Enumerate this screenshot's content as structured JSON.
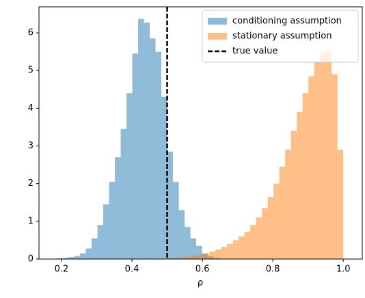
{
  "chart_data": {
    "type": "histogram",
    "xlabel": "ρ",
    "xlim": [
      0.136,
      1.054
    ],
    "ylim": [
      0,
      6.69
    ],
    "xticks": [
      0.2,
      0.4,
      0.6,
      0.8,
      {
        "value": 1.0,
        "label": "1.0"
      }
    ],
    "yticks": [
      0,
      1,
      2,
      3,
      4,
      5,
      6
    ],
    "legend": "upper right",
    "series": [
      {
        "name": "conditioning assumption",
        "color": "#1f77b4",
        "alpha": 0.5,
        "bins": [
          0.17,
          0.1865,
          0.203,
          0.2195,
          0.236,
          0.2525,
          0.269,
          0.2855,
          0.302,
          0.3185,
          0.335,
          0.3515,
          0.368,
          0.3845,
          0.401,
          0.4175,
          0.434,
          0.4505,
          0.467,
          0.4835,
          0.5,
          0.5165,
          0.533,
          0.5495,
          0.566,
          0.5825,
          0.599,
          0.6155,
          0.632,
          0.6485,
          0.665
        ],
        "values": [
          0.01,
          0.02,
          0.03,
          0.05,
          0.08,
          0.15,
          0.28,
          0.55,
          0.9,
          1.45,
          2.05,
          2.7,
          3.45,
          4.4,
          5.45,
          6.37,
          6.27,
          5.85,
          5.5,
          4.3,
          2.85,
          2.05,
          1.3,
          0.85,
          0.55,
          0.35,
          0.15,
          0.07,
          0.03,
          0.01
        ]
      },
      {
        "name": "stationary assumption",
        "color": "#ff7f0e",
        "alpha": 0.5,
        "bins": [
          0.472,
          0.4885,
          0.505,
          0.5215,
          0.538,
          0.5545,
          0.571,
          0.5875,
          0.604,
          0.6205,
          0.637,
          0.6535,
          0.67,
          0.6865,
          0.703,
          0.7195,
          0.736,
          0.7525,
          0.769,
          0.7855,
          0.802,
          0.8185,
          0.835,
          0.8515,
          0.868,
          0.8845,
          0.901,
          0.9175,
          0.934,
          0.9505,
          0.967,
          0.9835,
          1.0
        ],
        "values": [
          0.01,
          0.02,
          0.03,
          0.04,
          0.05,
          0.07,
          0.09,
          0.12,
          0.15,
          0.2,
          0.25,
          0.32,
          0.4,
          0.5,
          0.6,
          0.72,
          0.9,
          1.1,
          1.35,
          1.65,
          2.0,
          2.45,
          2.9,
          3.4,
          3.9,
          4.4,
          4.85,
          5.25,
          5.5,
          5.55,
          4.9,
          2.9
        ]
      }
    ],
    "vline": {
      "x": 0.5,
      "name": "true value",
      "color": "#000000",
      "style": "dashed"
    }
  }
}
